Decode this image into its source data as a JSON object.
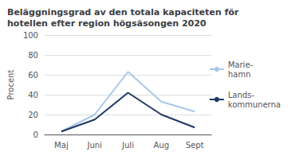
{
  "chart_data": {
    "type": "line",
    "title": "Beläggningsgrad av den totala kapaciteten för\nhotellen efter region högsäsongen 2020",
    "ylabel": "Procent",
    "categories": [
      "Maj",
      "Juni",
      "Juli",
      "Aug",
      "Sept"
    ],
    "series": [
      {
        "name": "Marie-\nhamn",
        "color": "#a8c8e8",
        "values": [
          3,
          20,
          63,
          33,
          23
        ]
      },
      {
        "name": "Lands-\nkommunerna",
        "color": "#1f3864",
        "values": [
          3,
          15,
          42,
          20,
          7
        ]
      }
    ],
    "ylim": [
      0,
      100
    ],
    "yticks": [
      0,
      20,
      40,
      60,
      80,
      100
    ],
    "grid": true,
    "legend": "right"
  }
}
